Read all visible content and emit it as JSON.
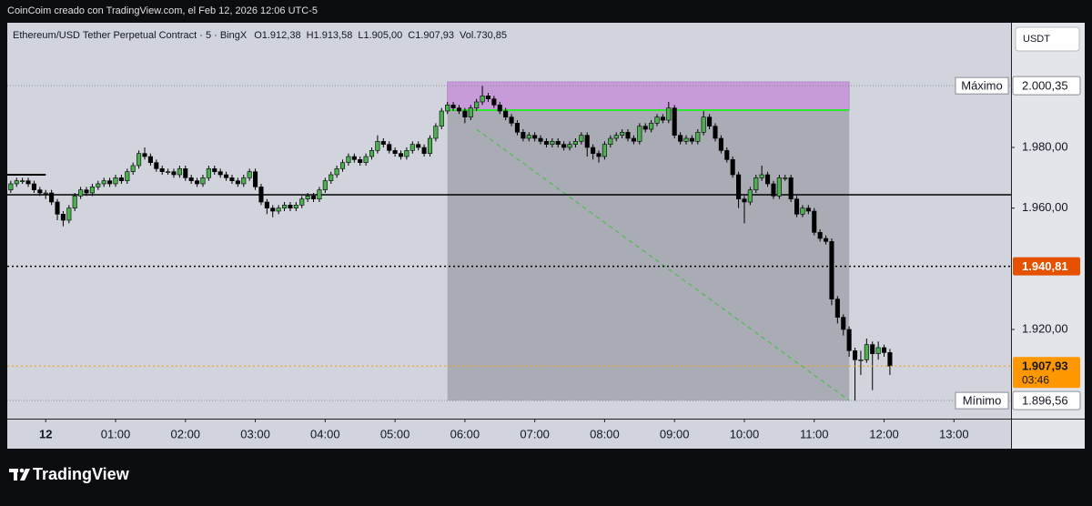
{
  "header": "CoinCoim creado con TradingView.com, el Feb 12, 2026 12:06 UTC-5",
  "brand": "TradingView",
  "chart_data": {
    "type": "candlestick",
    "legend": {
      "title": "Ethereum/USD Tether Perpetual Contract · 5 · BingX",
      "values": [
        "O1.912,38",
        "H1.913,58",
        "L1.905,00",
        "C1.907,93",
        "Vol.730,85"
      ]
    },
    "currency": "USDT",
    "bull_color": "#4caf50",
    "bear_color": "#000000",
    "xlim": [
      -33,
      829
    ],
    "xticks": [
      {
        "value": 0,
        "label": "12"
      },
      {
        "value": 60,
        "label": "01:00"
      },
      {
        "value": 120,
        "label": "02:00"
      },
      {
        "value": 180,
        "label": "03:00"
      },
      {
        "value": 240,
        "label": "04:00"
      },
      {
        "value": 300,
        "label": "05:00"
      },
      {
        "value": 360,
        "label": "06:00"
      },
      {
        "value": 420,
        "label": "07:00"
      },
      {
        "value": 480,
        "label": "08:00"
      },
      {
        "value": 540,
        "label": "09:00"
      },
      {
        "value": 600,
        "label": "10:00"
      },
      {
        "value": 660,
        "label": "11:00"
      },
      {
        "value": 720,
        "label": "12:00"
      },
      {
        "value": 780,
        "label": "13:00"
      }
    ],
    "ylim": [
      1890.6,
      2020.8
    ],
    "yticks": [
      {
        "value": 1920,
        "label": "1.920,00"
      },
      {
        "value": 1960,
        "label": "1.960,00"
      },
      {
        "value": 1980,
        "label": "1.980,00"
      }
    ],
    "x": [
      -30,
      -25,
      -20,
      -15,
      -10,
      -5,
      0,
      5,
      10,
      15,
      20,
      25,
      30,
      35,
      40,
      45,
      50,
      55,
      60,
      65,
      70,
      75,
      80,
      85,
      90,
      95,
      100,
      105,
      110,
      115,
      120,
      125,
      130,
      135,
      140,
      145,
      150,
      155,
      160,
      165,
      170,
      175,
      180,
      185,
      190,
      195,
      200,
      205,
      210,
      215,
      220,
      225,
      230,
      235,
      240,
      245,
      250,
      255,
      260,
      265,
      270,
      275,
      280,
      285,
      290,
      295,
      300,
      305,
      310,
      315,
      320,
      325,
      330,
      335,
      340,
      345,
      350,
      355,
      360,
      365,
      370,
      375,
      380,
      385,
      390,
      395,
      400,
      405,
      410,
      415,
      420,
      425,
      430,
      435,
      440,
      445,
      450,
      455,
      460,
      465,
      470,
      475,
      480,
      485,
      490,
      495,
      500,
      505,
      510,
      515,
      520,
      525,
      530,
      535,
      540,
      545,
      550,
      555,
      560,
      565,
      570,
      575,
      580,
      585,
      590,
      595,
      600,
      605,
      610,
      615,
      620,
      625,
      630,
      635,
      640,
      645,
      650,
      655,
      660,
      665,
      670,
      675,
      680,
      685,
      690,
      695,
      700,
      705,
      710,
      715,
      720,
      725
    ],
    "ohlc": [
      [
        1966,
        1969,
        1965,
        1968
      ],
      [
        1968,
        1970,
        1967,
        1969
      ],
      [
        1969,
        1970,
        1968,
        1969
      ],
      [
        1969,
        1970,
        1967,
        1968
      ],
      [
        1968,
        1969,
        1965,
        1966
      ],
      [
        1966,
        1967,
        1964,
        1965
      ],
      [
        1965,
        1966,
        1963,
        1965
      ],
      [
        1965,
        1966,
        1961,
        1962
      ],
      [
        1962,
        1963,
        1956,
        1958
      ],
      [
        1958,
        1959,
        1954,
        1956
      ],
      [
        1956,
        1961,
        1955,
        1960
      ],
      [
        1960,
        1965,
        1959,
        1964
      ],
      [
        1964,
        1967,
        1963,
        1966
      ],
      [
        1966,
        1967,
        1964,
        1965
      ],
      [
        1965,
        1968,
        1964,
        1967
      ],
      [
        1967,
        1969,
        1966,
        1968
      ],
      [
        1968,
        1970,
        1967,
        1969
      ],
      [
        1969,
        1970,
        1967,
        1968
      ],
      [
        1968,
        1971,
        1967,
        1970
      ],
      [
        1970,
        1971,
        1968,
        1969
      ],
      [
        1969,
        1973,
        1968,
        1972
      ],
      [
        1972,
        1975,
        1971,
        1974
      ],
      [
        1974,
        1979,
        1973,
        1978
      ],
      [
        1978,
        1980,
        1976,
        1977
      ],
      [
        1977,
        1978,
        1974,
        1975
      ],
      [
        1975,
        1976,
        1972,
        1973
      ],
      [
        1973,
        1974,
        1971,
        1972
      ],
      [
        1972,
        1973,
        1971,
        1972
      ],
      [
        1972,
        1973,
        1970,
        1971
      ],
      [
        1971,
        1974,
        1970,
        1973
      ],
      [
        1973,
        1974,
        1969,
        1970
      ],
      [
        1970,
        1971,
        1968,
        1969
      ],
      [
        1969,
        1970,
        1967,
        1968
      ],
      [
        1968,
        1971,
        1967,
        1970
      ],
      [
        1970,
        1974,
        1969,
        1973
      ],
      [
        1973,
        1974,
        1971,
        1972
      ],
      [
        1972,
        1973,
        1970,
        1971
      ],
      [
        1971,
        1972,
        1969,
        1970
      ],
      [
        1970,
        1971,
        1968,
        1969
      ],
      [
        1969,
        1970,
        1967,
        1968
      ],
      [
        1968,
        1971,
        1967,
        1970
      ],
      [
        1970,
        1973,
        1969,
        1972
      ],
      [
        1972,
        1973,
        1966,
        1967
      ],
      [
        1967,
        1968,
        1961,
        1962
      ],
      [
        1962,
        1963,
        1958,
        1960
      ],
      [
        1960,
        1961,
        1957,
        1959
      ],
      [
        1959,
        1961,
        1958,
        1960
      ],
      [
        1960,
        1962,
        1959,
        1961
      ],
      [
        1961,
        1962,
        1959,
        1960
      ],
      [
        1960,
        1962,
        1959,
        1961
      ],
      [
        1961,
        1964,
        1960,
        1963
      ],
      [
        1963,
        1965,
        1962,
        1964
      ],
      [
        1964,
        1965,
        1962,
        1963
      ],
      [
        1963,
        1967,
        1962,
        1966
      ],
      [
        1966,
        1970,
        1965,
        1969
      ],
      [
        1969,
        1972,
        1968,
        1971
      ],
      [
        1971,
        1974,
        1970,
        1973
      ],
      [
        1973,
        1976,
        1972,
        1975
      ],
      [
        1975,
        1978,
        1974,
        1977
      ],
      [
        1977,
        1978,
        1975,
        1976
      ],
      [
        1976,
        1977,
        1974,
        1975
      ],
      [
        1975,
        1978,
        1974,
        1977
      ],
      [
        1977,
        1980,
        1976,
        1979
      ],
      [
        1979,
        1984,
        1978,
        1982
      ],
      [
        1982,
        1983,
        1980,
        1981
      ],
      [
        1981,
        1982,
        1978,
        1979
      ],
      [
        1979,
        1980,
        1977,
        1978
      ],
      [
        1978,
        1979,
        1976,
        1977
      ],
      [
        1977,
        1980,
        1976,
        1979
      ],
      [
        1979,
        1982,
        1978,
        1981
      ],
      [
        1981,
        1982,
        1979,
        1980
      ],
      [
        1980,
        1981,
        1977,
        1978
      ],
      [
        1978,
        1984,
        1977,
        1983
      ],
      [
        1983,
        1988,
        1982,
        1987
      ],
      [
        1987,
        1993,
        1986,
        1992
      ],
      [
        1992,
        1995,
        1991,
        1994
      ],
      [
        1994,
        1995,
        1992,
        1993
      ],
      [
        1993,
        1994,
        1991,
        1992
      ],
      [
        1992,
        1993,
        1988,
        1990
      ],
      [
        1990,
        1994,
        1989,
        1993
      ],
      [
        1993,
        1996,
        1992,
        1995
      ],
      [
        1995,
        2000.35,
        1994,
        1997
      ],
      [
        1997,
        1998,
        1995,
        1996
      ],
      [
        1996,
        1997,
        1993,
        1994
      ],
      [
        1994,
        1995,
        1991,
        1992
      ],
      [
        1992,
        1993,
        1989,
        1990
      ],
      [
        1990,
        1991,
        1987,
        1988
      ],
      [
        1988,
        1989,
        1984,
        1985
      ],
      [
        1985,
        1986,
        1982,
        1983
      ],
      [
        1983,
        1985,
        1982,
        1984
      ],
      [
        1984,
        1985,
        1982,
        1983
      ],
      [
        1983,
        1984,
        1981,
        1982
      ],
      [
        1982,
        1983,
        1980,
        1981
      ],
      [
        1981,
        1983,
        1980,
        1982
      ],
      [
        1982,
        1983,
        1980,
        1981
      ],
      [
        1981,
        1982,
        1979,
        1980
      ],
      [
        1980,
        1982,
        1979,
        1981
      ],
      [
        1981,
        1983,
        1980,
        1982
      ],
      [
        1982,
        1985,
        1981,
        1984
      ],
      [
        1984,
        1985,
        1977,
        1980
      ],
      [
        1980,
        1981,
        1976,
        1978
      ],
      [
        1978,
        1979,
        1975,
        1977
      ],
      [
        1977,
        1982,
        1976,
        1981
      ],
      [
        1981,
        1984,
        1980,
        1983
      ],
      [
        1983,
        1985,
        1982,
        1984
      ],
      [
        1984,
        1986,
        1983,
        1985
      ],
      [
        1985,
        1986,
        1982,
        1983
      ],
      [
        1983,
        1984,
        1981,
        1982
      ],
      [
        1982,
        1988,
        1981,
        1987
      ],
      [
        1987,
        1988,
        1985,
        1986
      ],
      [
        1986,
        1989,
        1985,
        1988
      ],
      [
        1988,
        1991,
        1987,
        1990
      ],
      [
        1990,
        1991,
        1988,
        1989
      ],
      [
        1989,
        1995,
        1988,
        1993
      ],
      [
        1993,
        1994,
        1983,
        1984
      ],
      [
        1984,
        1985,
        1981,
        1982
      ],
      [
        1982,
        1984,
        1981,
        1983
      ],
      [
        1983,
        1984,
        1981,
        1982
      ],
      [
        1982,
        1986,
        1981,
        1985
      ],
      [
        1985,
        1992,
        1984,
        1990
      ],
      [
        1990,
        1991,
        1986,
        1987
      ],
      [
        1987,
        1988,
        1982,
        1983
      ],
      [
        1983,
        1984,
        1978,
        1979
      ],
      [
        1979,
        1980,
        1975,
        1976
      ],
      [
        1976,
        1977,
        1970,
        1971
      ],
      [
        1971,
        1972,
        1960,
        1963
      ],
      [
        1963,
        1964,
        1955,
        1962
      ],
      [
        1962,
        1967,
        1961,
        1966
      ],
      [
        1966,
        1971,
        1965,
        1970
      ],
      [
        1970,
        1974,
        1969,
        1971
      ],
      [
        1971,
        1972,
        1967,
        1968
      ],
      [
        1968,
        1969,
        1963,
        1964
      ],
      [
        1964,
        1971,
        1963,
        1970
      ],
      [
        1970,
        1971,
        1969,
        1970
      ],
      [
        1970,
        1971,
        1962,
        1963
      ],
      [
        1963,
        1964,
        1957,
        1958
      ],
      [
        1958,
        1961,
        1957,
        1960
      ],
      [
        1960,
        1961,
        1958,
        1959
      ],
      [
        1959,
        1960,
        1951,
        1952
      ],
      [
        1952,
        1953,
        1949,
        1950
      ],
      [
        1950,
        1951,
        1948,
        1949
      ],
      [
        1949,
        1950,
        1928,
        1930
      ],
      [
        1930,
        1931,
        1922,
        1924
      ],
      [
        1924,
        1925,
        1918,
        1920
      ],
      [
        1920,
        1921,
        1911,
        1913
      ],
      [
        1913,
        1914,
        1896.56,
        1910
      ],
      [
        1910,
        1913,
        1905,
        1910
      ],
      [
        1910,
        1917,
        1909,
        1915
      ],
      [
        1915,
        1916,
        1900,
        1912
      ],
      [
        1912,
        1916,
        1910,
        1914
      ],
      [
        1914,
        1915,
        1911,
        1912.38
      ],
      [
        1912.38,
        1913.58,
        1905,
        1907.93
      ]
    ],
    "hlines": [
      {
        "value": 1964.4,
        "color": "#000000",
        "dash": "none"
      },
      {
        "value": 1940.81,
        "color": "#000000",
        "dash": "2 3"
      }
    ],
    "segment": {
      "x": [
        -33,
        0
      ],
      "y": 1971
    },
    "range_box": {
      "x": [
        345,
        690
      ],
      "top": 2001.6,
      "entry": 1992.3,
      "bottom": 1896.56
    },
    "diagonal": {
      "x": [
        370,
        690
      ],
      "y": [
        1986,
        1896.56
      ]
    },
    "price_labels": [
      {
        "name": "Máximo",
        "value": 2000.35,
        "label": "2.000,35",
        "color": "#ffffff",
        "text_color": "#131722"
      },
      {
        "value": 1940.81,
        "label": "1.940,81",
        "color": "#e65100",
        "text_color": "#ffffff"
      },
      {
        "value": 1907.93,
        "label": "1.907,93",
        "countdown": "03:46",
        "color": "#ff9800",
        "text_color": "#131722"
      },
      {
        "name": "Mínimo",
        "value": 1896.56,
        "label": "1.896,56",
        "color": "#ffffff",
        "text_color": "#131722"
      }
    ]
  }
}
